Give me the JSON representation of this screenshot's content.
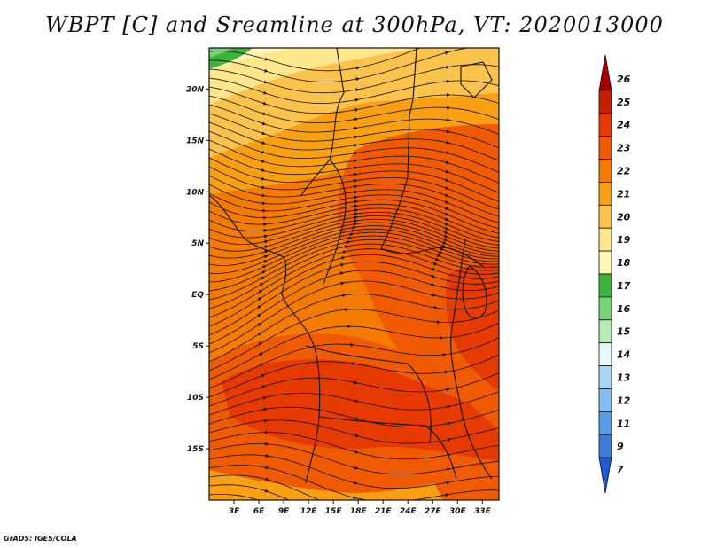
{
  "title": "WBPT [C] and Sreamline at 300hPa, VT: 2020013000",
  "footer": "GrADS: IGES/COLA",
  "colors": {
    "c26": "#a50000",
    "c25": "#c81e00",
    "c24": "#e63a00",
    "c23": "#f05a00",
    "c22": "#f57a00",
    "c21": "#f89f12",
    "c20": "#fbc34c",
    "c19": "#fde68c",
    "c18": "#fff6b8",
    "c17": "#3cb43c",
    "c16": "#78d278",
    "c15": "#b4ecb4",
    "c14": "#e6f8f8",
    "c13": "#a9d6f5",
    "c12": "#82bef0",
    "c11": "#5a9be6",
    "c9": "#3c7ddc",
    "c7": "#1e5ad2"
  },
  "map": {
    "lon_range": [
      0,
      35
    ],
    "lat_range": [
      -20,
      24
    ],
    "lon_ticks": [
      "3E",
      "6E",
      "9E",
      "12E",
      "15E",
      "18E",
      "21E",
      "24E",
      "27E",
      "30E",
      "33E"
    ],
    "lon_values": [
      3,
      6,
      9,
      12,
      15,
      18,
      21,
      24,
      27,
      30,
      33
    ],
    "lat_ticks": [
      "20N",
      "15N",
      "10N",
      "5N",
      "EQ",
      "5S",
      "10S",
      "15S"
    ],
    "lat_values": [
      20,
      15,
      10,
      5,
      0,
      -5,
      -10,
      -15
    ]
  },
  "colorbar": {
    "labels": [
      "26",
      "25",
      "24",
      "23",
      "22",
      "21",
      "20",
      "19",
      "18",
      "17",
      "16",
      "15",
      "14",
      "13",
      "12",
      "11",
      "9",
      "7"
    ],
    "color_keys": [
      "c26",
      "c25",
      "c24",
      "c23",
      "c22",
      "c21",
      "c20",
      "c19",
      "c18",
      "c17",
      "c16",
      "c15",
      "c14",
      "c13",
      "c12",
      "c11",
      "c9",
      "c7"
    ]
  }
}
